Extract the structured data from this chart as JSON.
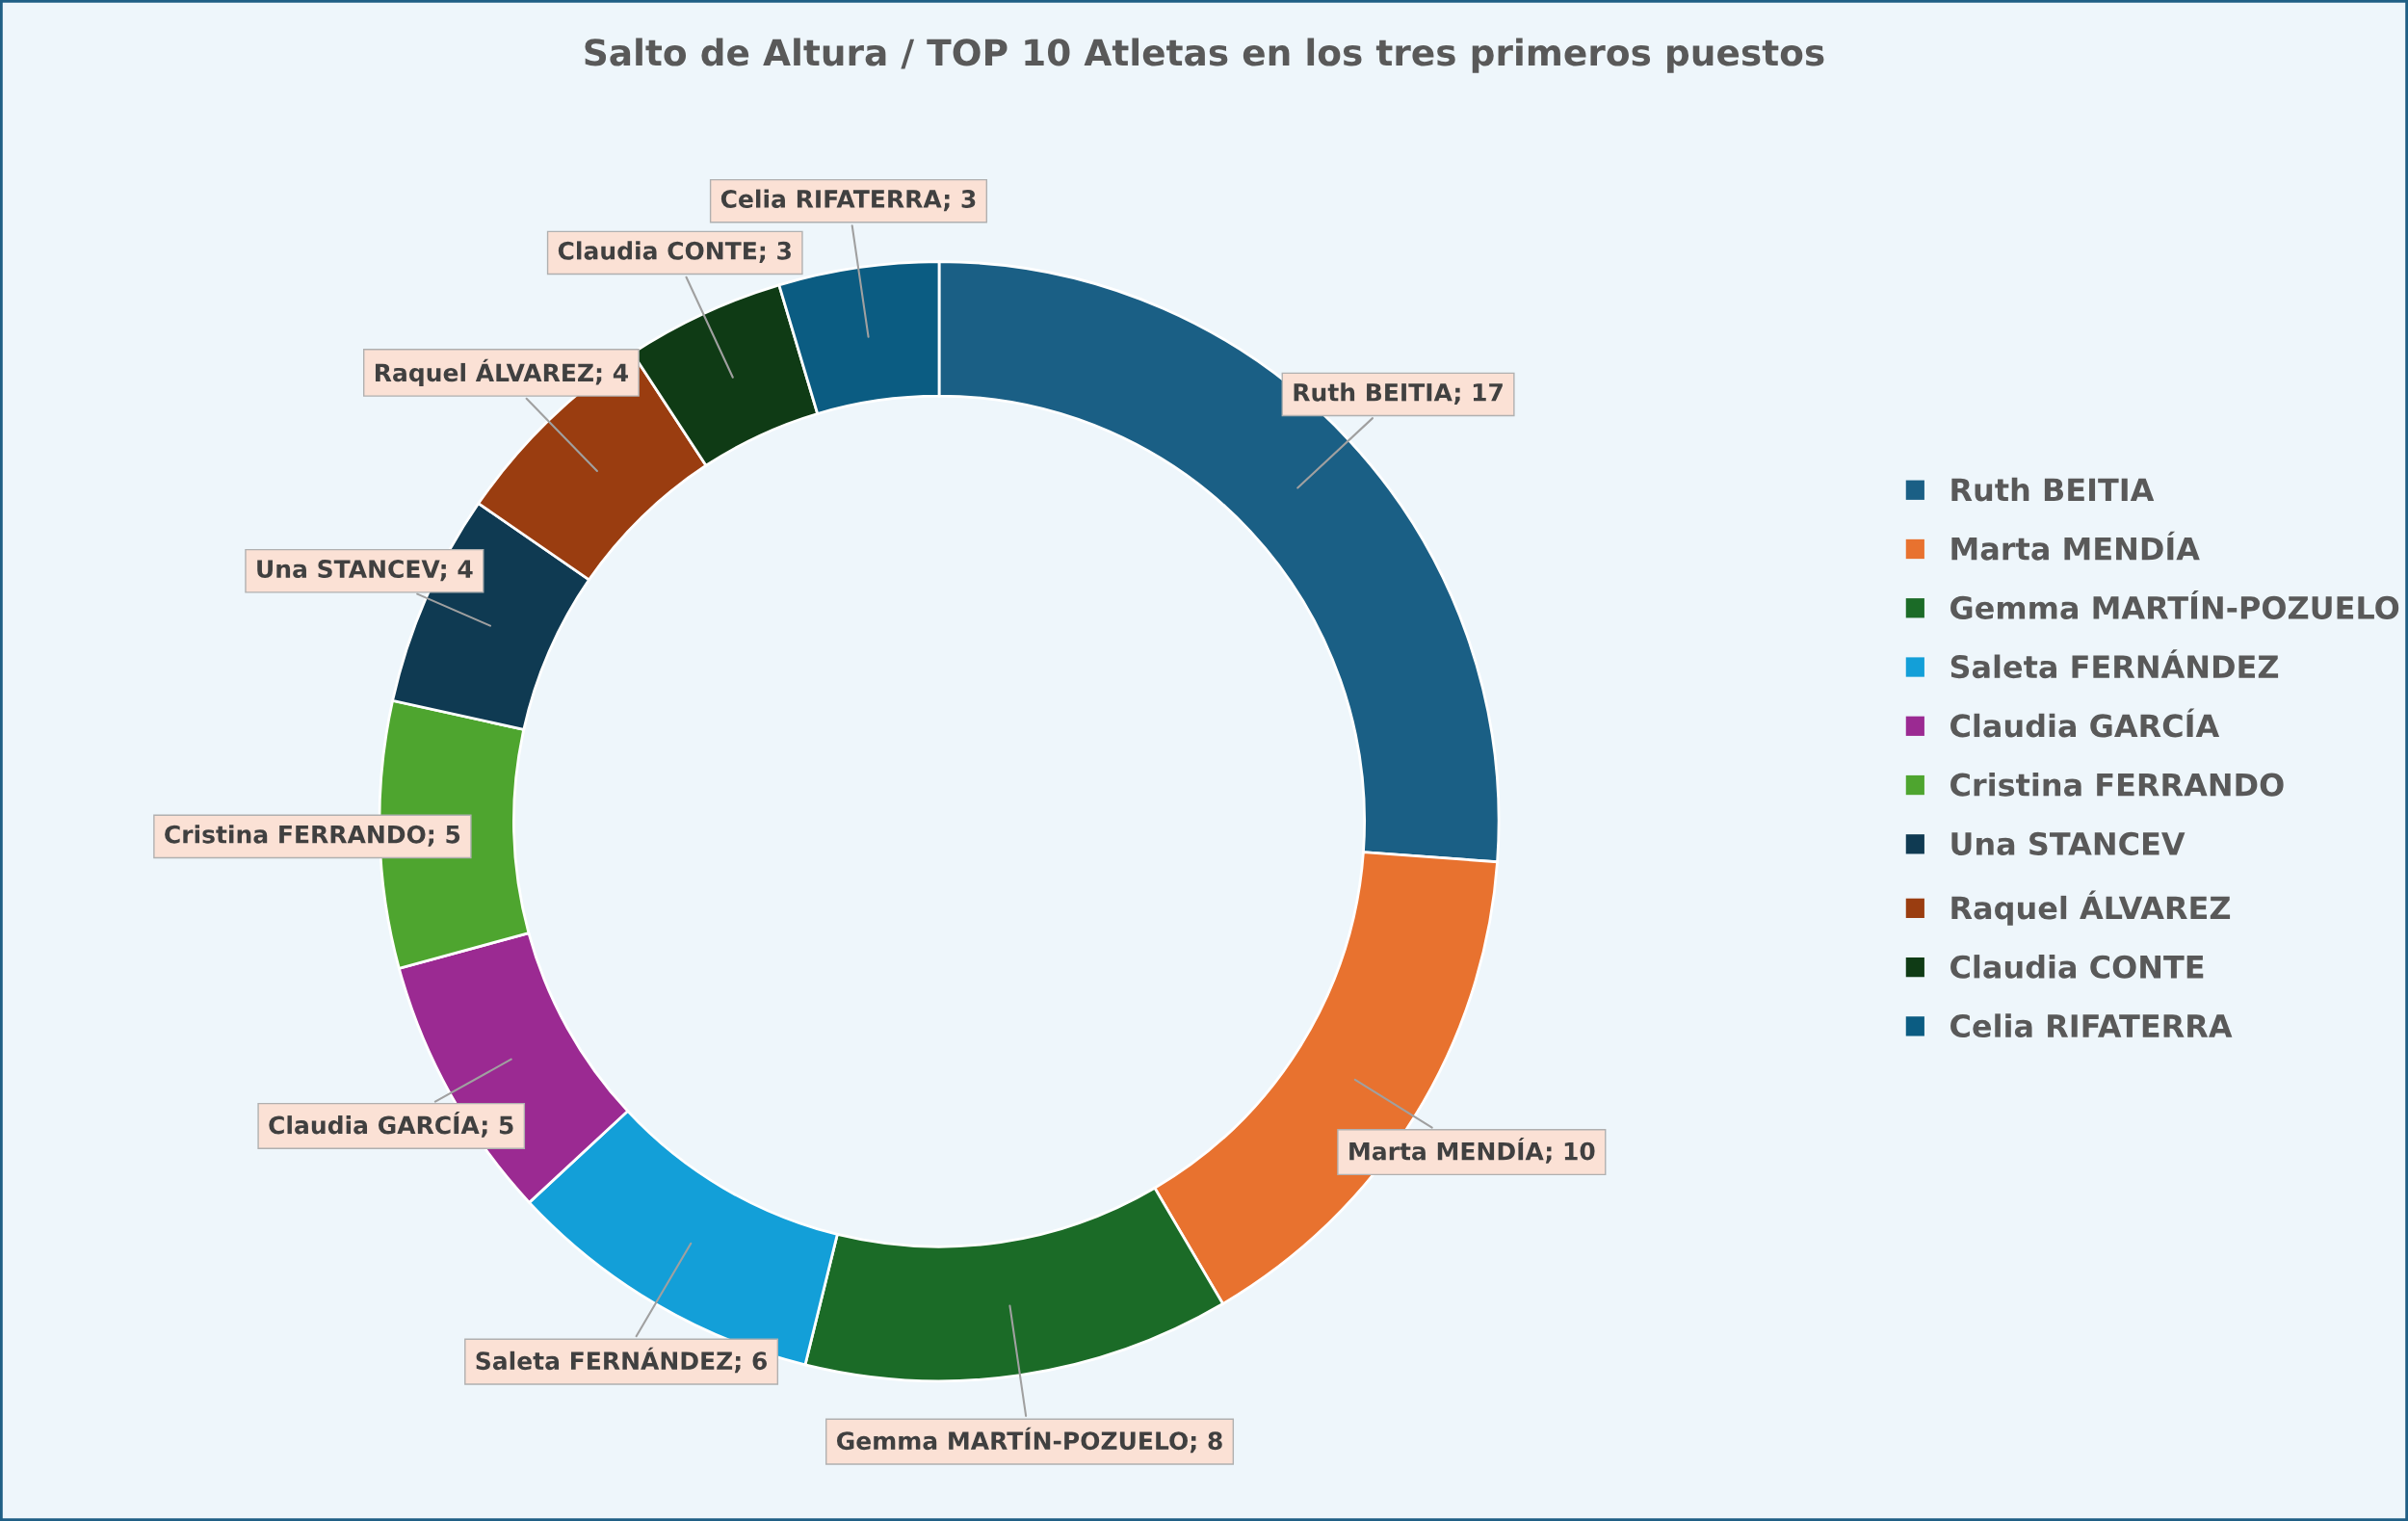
{
  "chart_data": {
    "type": "donut",
    "title": "Salto de Altura / TOP 10 Atletas en los tres primeros puestos",
    "categories": [
      "Ruth BEITIA",
      "Marta MENDÍA",
      "Gemma MARTÍN-POZUELO",
      "Saleta FERNÁNDEZ",
      "Claudia GARCÍA",
      "Cristina FERRANDO",
      "Una STANCEV",
      "Raquel ÁLVAREZ",
      "Claudia CONTE",
      "Celia RIFATERRA"
    ],
    "values": [
      17,
      10,
      8,
      6,
      5,
      5,
      4,
      4,
      3,
      3
    ],
    "colors": [
      "#1a5f85",
      "#e8722f",
      "#1b6b27",
      "#139fd8",
      "#9b2a92",
      "#4ea52f",
      "#0f3a52",
      "#9a3d10",
      "#0f3b15",
      "#0b5c82"
    ],
    "value_labels": [
      "Ruth BEITIA; 17",
      "Marta MENDÍA; 10",
      "Gemma MARTÍN-POZUELO; 8",
      "Saleta FERNÁNDEZ; 6",
      "Claudia GARCÍA; 5",
      "Cristina FERRANDO; 5",
      "Una STANCEV; 4",
      "Raquel ÁLVAREZ; 4",
      "Claudia CONTE; 3",
      "Celia RIFATERRA; 3"
    ],
    "legend": "right"
  }
}
